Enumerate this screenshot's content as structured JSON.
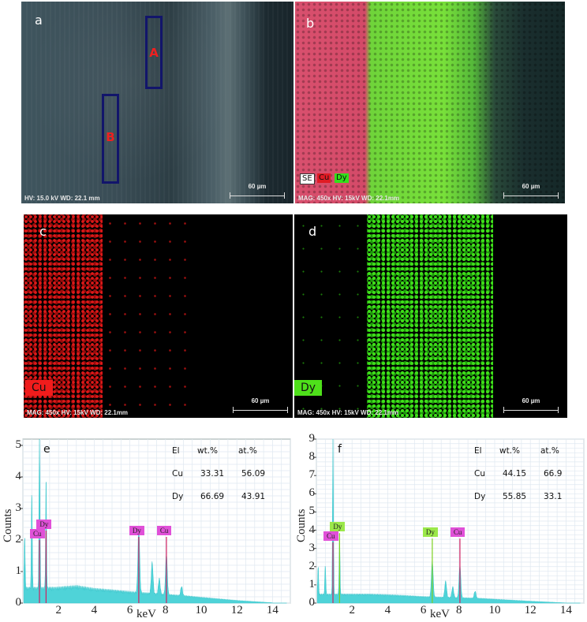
{
  "panels": {
    "a": {
      "label": "a",
      "type": "SEM image",
      "info": "HV: 15.0 kV  WD: 22.1 mm",
      "scale_bar": "60 µm",
      "regions": [
        {
          "label": "A",
          "color": "#12156b"
        },
        {
          "label": "B",
          "color": "#12156b"
        }
      ]
    },
    "b": {
      "label": "b",
      "type": "EDS overlay map",
      "info": "MAG: 450x  HV: 15kV  WD: 22.1mm",
      "scale_bar": "60 µm",
      "legend": [
        {
          "label": "SE",
          "bg": "#ffffff",
          "fg": "#111111"
        },
        {
          "label": "Cu",
          "bg": "#e01b24",
          "fg": "#111111"
        },
        {
          "label": "Dy",
          "bg": "#33e01a",
          "fg": "#111111"
        }
      ]
    },
    "c": {
      "label": "c",
      "type": "EDS element map",
      "element": "Cu",
      "element_color": "#f01c1c",
      "info": "MAG: 450x  HV: 15kV  WD: 22.1mm",
      "scale_bar": "60 µm"
    },
    "d": {
      "label": "d",
      "type": "EDS element map",
      "element": "Dy",
      "element_color": "#4ee01a",
      "info": "MAG: 450x  HV: 15kV  WD: 22.1mm",
      "scale_bar": "60 µm"
    }
  },
  "chart_data": [
    {
      "type": "area",
      "panel": "e",
      "title": "",
      "xlabel": "keV",
      "ylabel": "Counts",
      "xlim": [
        0,
        15
      ],
      "ylim": [
        0,
        5.2
      ],
      "xticks": [
        2,
        4,
        6,
        8,
        10,
        12,
        14
      ],
      "yticks": [
        0,
        1,
        2,
        3,
        4,
        5
      ],
      "grid": true,
      "series_color": "#4fd3d8",
      "peaks": [
        {
          "x": 0.1,
          "y": 1.7
        },
        {
          "x": 0.5,
          "y": 3.2
        },
        {
          "x": 0.93,
          "y": 5.2
        },
        {
          "x": 1.3,
          "y": 3.6
        },
        {
          "x": 6.5,
          "y": 2.1
        },
        {
          "x": 7.25,
          "y": 1.0
        },
        {
          "x": 7.65,
          "y": 0.5
        },
        {
          "x": 8.05,
          "y": 1.3
        },
        {
          "x": 8.9,
          "y": 0.3
        }
      ],
      "background": [
        {
          "x": 1.8,
          "y": 0.45
        },
        {
          "x": 3,
          "y": 0.5
        },
        {
          "x": 4,
          "y": 0.42
        },
        {
          "x": 5,
          "y": 0.38
        },
        {
          "x": 6,
          "y": 0.33
        },
        {
          "x": 9,
          "y": 0.22
        },
        {
          "x": 10,
          "y": 0.17
        },
        {
          "x": 12,
          "y": 0.08
        },
        {
          "x": 14,
          "y": 0.01
        }
      ],
      "peak_labels": [
        {
          "label": "Dy",
          "x": 1.3,
          "y": 2.45,
          "bg": "#e050d8"
        },
        {
          "label": "Cu",
          "x": 0.93,
          "y": 2.15,
          "bg": "#e050d8"
        },
        {
          "label": "Dy",
          "x": 6.5,
          "y": 2.25,
          "bg": "#e050d8"
        },
        {
          "label": "Cu",
          "x": 8.05,
          "y": 2.25,
          "bg": "#e050d8"
        }
      ],
      "composition": {
        "headers": [
          "El",
          "wt.%",
          "at.%"
        ],
        "rows": [
          [
            "Cu",
            "33.31",
            "56.09"
          ],
          [
            "Dy",
            "66.69",
            "43.91"
          ]
        ]
      }
    },
    {
      "type": "area",
      "panel": "f",
      "title": "",
      "xlabel": "keV",
      "ylabel": "Counts",
      "xlim": [
        0,
        15
      ],
      "ylim": [
        0,
        9
      ],
      "xticks": [
        2,
        4,
        6,
        8,
        10,
        12,
        14
      ],
      "yticks": [
        0,
        1,
        2,
        3,
        4,
        5,
        6,
        7,
        8,
        9
      ],
      "grid": true,
      "series_color": "#4fd3d8",
      "peaks": [
        {
          "x": 0.1,
          "y": 1.6
        },
        {
          "x": 0.5,
          "y": 1.7
        },
        {
          "x": 0.93,
          "y": 8.6
        },
        {
          "x": 1.3,
          "y": 3.3
        },
        {
          "x": 6.5,
          "y": 2.0
        },
        {
          "x": 7.25,
          "y": 0.9
        },
        {
          "x": 7.65,
          "y": 0.6
        },
        {
          "x": 8.05,
          "y": 1.8
        },
        {
          "x": 8.9,
          "y": 0.4
        }
      ],
      "background": [
        {
          "x": 1.8,
          "y": 0.45
        },
        {
          "x": 3,
          "y": 0.45
        },
        {
          "x": 4,
          "y": 0.42
        },
        {
          "x": 5,
          "y": 0.38
        },
        {
          "x": 6,
          "y": 0.33
        },
        {
          "x": 9,
          "y": 0.25
        },
        {
          "x": 10,
          "y": 0.2
        },
        {
          "x": 12,
          "y": 0.1
        },
        {
          "x": 14,
          "y": 0.01
        }
      ],
      "peak_labels": [
        {
          "label": "Dy",
          "x": 1.3,
          "y": 4.1,
          "bg": "#9be84a"
        },
        {
          "label": "Cu",
          "x": 0.93,
          "y": 3.6,
          "bg": "#e050d8"
        },
        {
          "label": "Dy",
          "x": 6.5,
          "y": 3.8,
          "bg": "#9be84a"
        },
        {
          "label": "Cu",
          "x": 8.05,
          "y": 3.8,
          "bg": "#e050d8"
        }
      ],
      "composition": {
        "headers": [
          "El",
          "wt.%",
          "at.%"
        ],
        "rows": [
          [
            "Cu",
            "44.15",
            "66.9"
          ],
          [
            "Dy",
            "55.85",
            "33.1"
          ]
        ]
      }
    }
  ]
}
